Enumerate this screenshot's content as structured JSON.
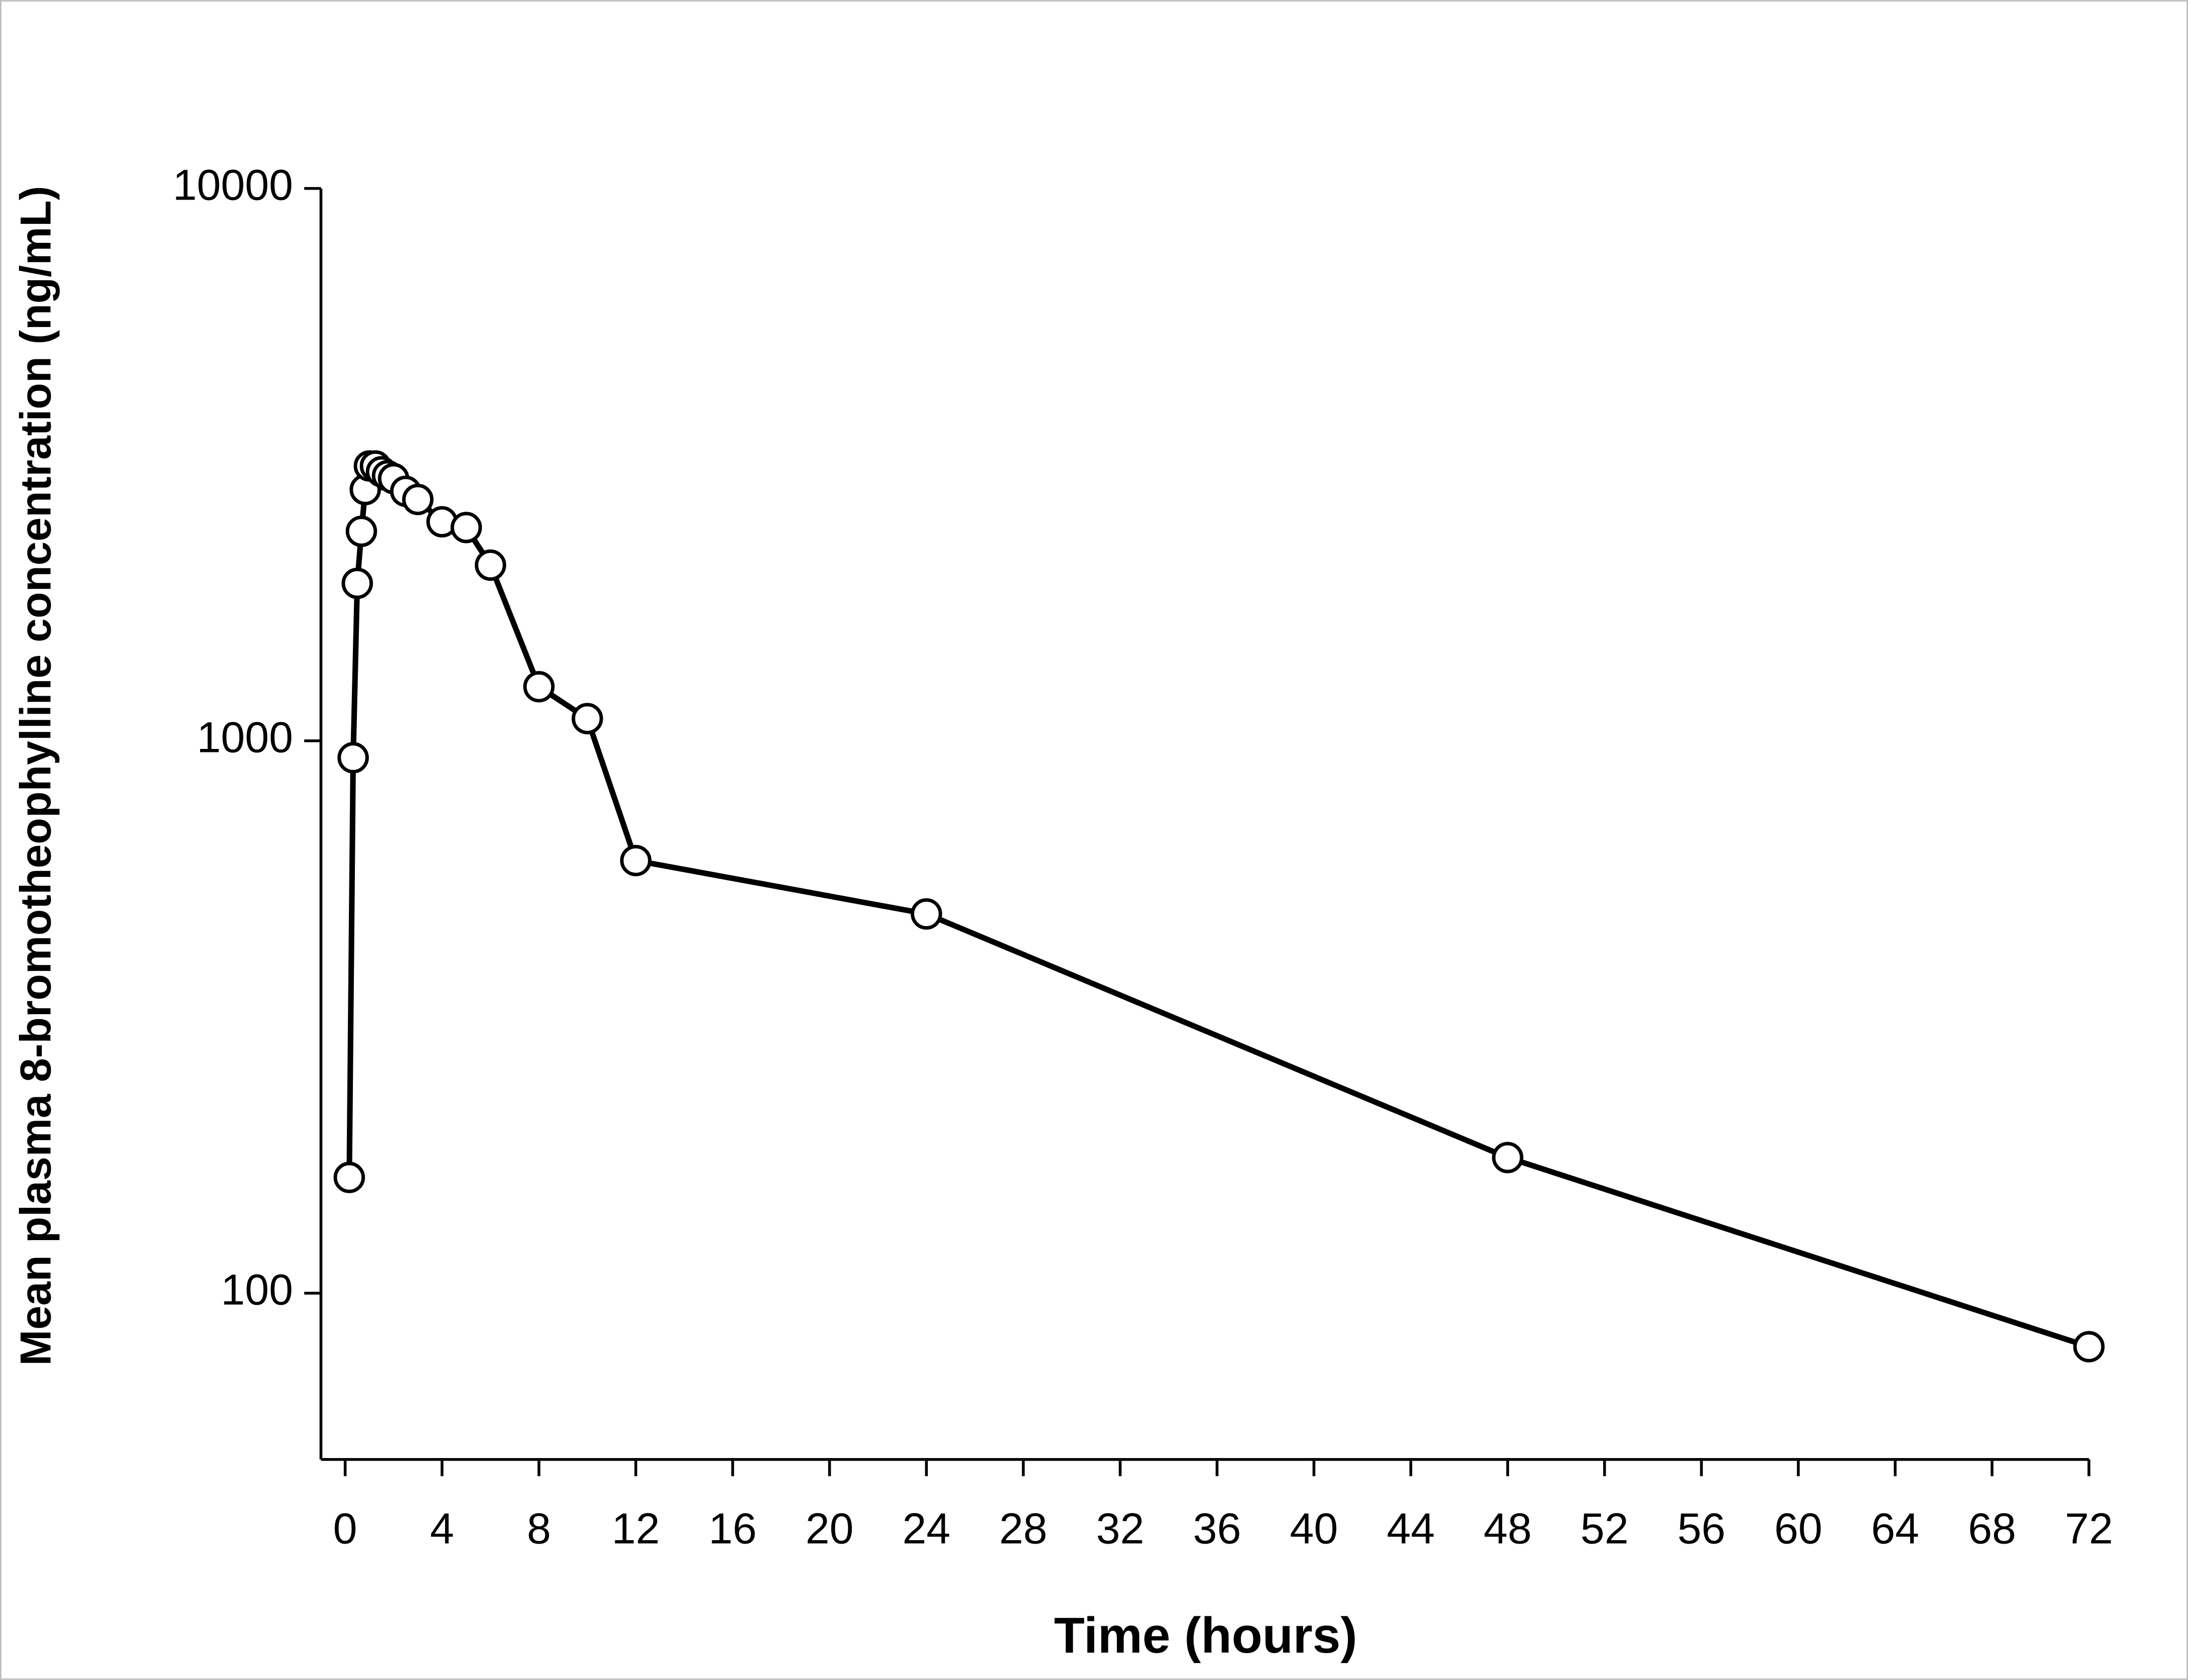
{
  "chart_data": {
    "type": "line",
    "x_label": "Time (hours)",
    "y_label": "Mean plasma 8-bromotheophylline concentration (ng/mL)",
    "x": [
      0.17,
      0.33,
      0.5,
      0.67,
      0.83,
      1,
      1.25,
      1.5,
      1.75,
      2,
      2.5,
      3,
      4,
      5,
      6,
      8,
      10,
      12,
      24,
      48,
      72
    ],
    "series": [
      {
        "color": "#000000",
        "values": [
          162,
          932,
          1928,
          2395,
          2850,
          3145,
          3145,
          3070,
          3020,
          2983,
          2830,
          2735,
          2492,
          2433,
          2080,
          1253,
          1097,
          607,
          486,
          176,
          80
        ]
      }
    ],
    "xlim": [
      -1,
      72
    ],
    "xticks": [
      0,
      4,
      8,
      12,
      16,
      20,
      24,
      28,
      32,
      36,
      40,
      44,
      48,
      52,
      56,
      60,
      64,
      68,
      72
    ],
    "ylim": [
      50,
      10000
    ],
    "yticks": [
      100,
      1000,
      10000
    ],
    "y_log": true,
    "grid": false,
    "marker": "open-circle"
  }
}
